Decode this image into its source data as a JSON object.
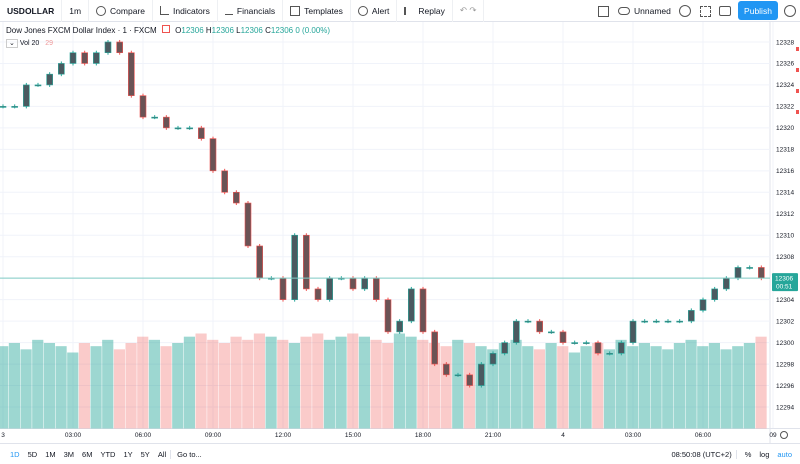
{
  "toolbar": {
    "symbol": "USDOLLAR",
    "interval": "1m",
    "compare": "Compare",
    "indicators": "Indicators",
    "financials": "Financials",
    "templates": "Templates",
    "alert": "Alert",
    "replay": "Replay",
    "layout_name": "Unnamed",
    "publish": "Publish"
  },
  "legend": {
    "title": "Dow Jones FXCM Dollar Index · 1 · FXCM",
    "open": {
      "label": "O",
      "value": 12306
    },
    "high": {
      "label": "H",
      "value": 12306
    },
    "low": {
      "label": "L",
      "value": 12306
    },
    "close": {
      "label": "C",
      "value": 12306
    },
    "change": "0 (0.00%)",
    "volume_label": "Vol 20",
    "volume_value": 29
  },
  "chart": {
    "type": "candlestick",
    "closes": [
      12322,
      12322,
      12324,
      12324,
      12325,
      12326,
      12327,
      12326,
      12327,
      12328,
      12327,
      12323,
      12321,
      12321,
      12320,
      12320,
      12320,
      12319,
      12316,
      12314,
      12313,
      12309,
      12306,
      12306,
      12304,
      12310,
      12305,
      12304,
      12306,
      12306,
      12305,
      12306,
      12304,
      12301,
      12302,
      12305,
      12301,
      12298,
      12297,
      12297,
      12296,
      12298,
      12299,
      12300,
      12302,
      12302,
      12301,
      12301,
      12300,
      12300,
      12300,
      12299,
      12299,
      12300,
      12302,
      12302,
      12302,
      12302,
      12302,
      12303,
      12304,
      12305,
      12306,
      12307,
      12307,
      12306
    ],
    "volumes": [
      26,
      27,
      25,
      28,
      27,
      26,
      24,
      27,
      26,
      28,
      25,
      27,
      29,
      28,
      26,
      27,
      29,
      30,
      28,
      27,
      29,
      28,
      30,
      29,
      28,
      27,
      29,
      30,
      28,
      29,
      30,
      29,
      28,
      27,
      30,
      29,
      28,
      27,
      26,
      28,
      27,
      26,
      25,
      27,
      28,
      26,
      25,
      27,
      26,
      24,
      26,
      27,
      25,
      28,
      26,
      27,
      26,
      25,
      27,
      28,
      26,
      27,
      25,
      26,
      27,
      29
    ],
    "up_color": "#26a69a",
    "down_color": "#ef5350",
    "ylim": [
      12292,
      12330
    ],
    "yticks": [
      12294,
      12296,
      12298,
      12300,
      12302,
      12304,
      12306,
      12308,
      12310,
      12312,
      12314,
      12316,
      12318,
      12320,
      12322,
      12324,
      12326,
      12328
    ],
    "time_labels": [
      "3",
      "03:00",
      "06:00",
      "09:00",
      "12:00",
      "15:00",
      "18:00",
      "21:00",
      "4",
      "03:00",
      "06:00",
      "09"
    ],
    "last_price": 12306,
    "countdown": "00:51"
  },
  "bottom_bar": {
    "ranges": [
      "1D",
      "5D",
      "1M",
      "3M",
      "6M",
      "YTD",
      "1Y",
      "5Y",
      "All"
    ],
    "goto": "Go to...",
    "clock": "08:50:08 (UTC+2)",
    "percent": "%",
    "log": "log",
    "auto": "auto"
  }
}
